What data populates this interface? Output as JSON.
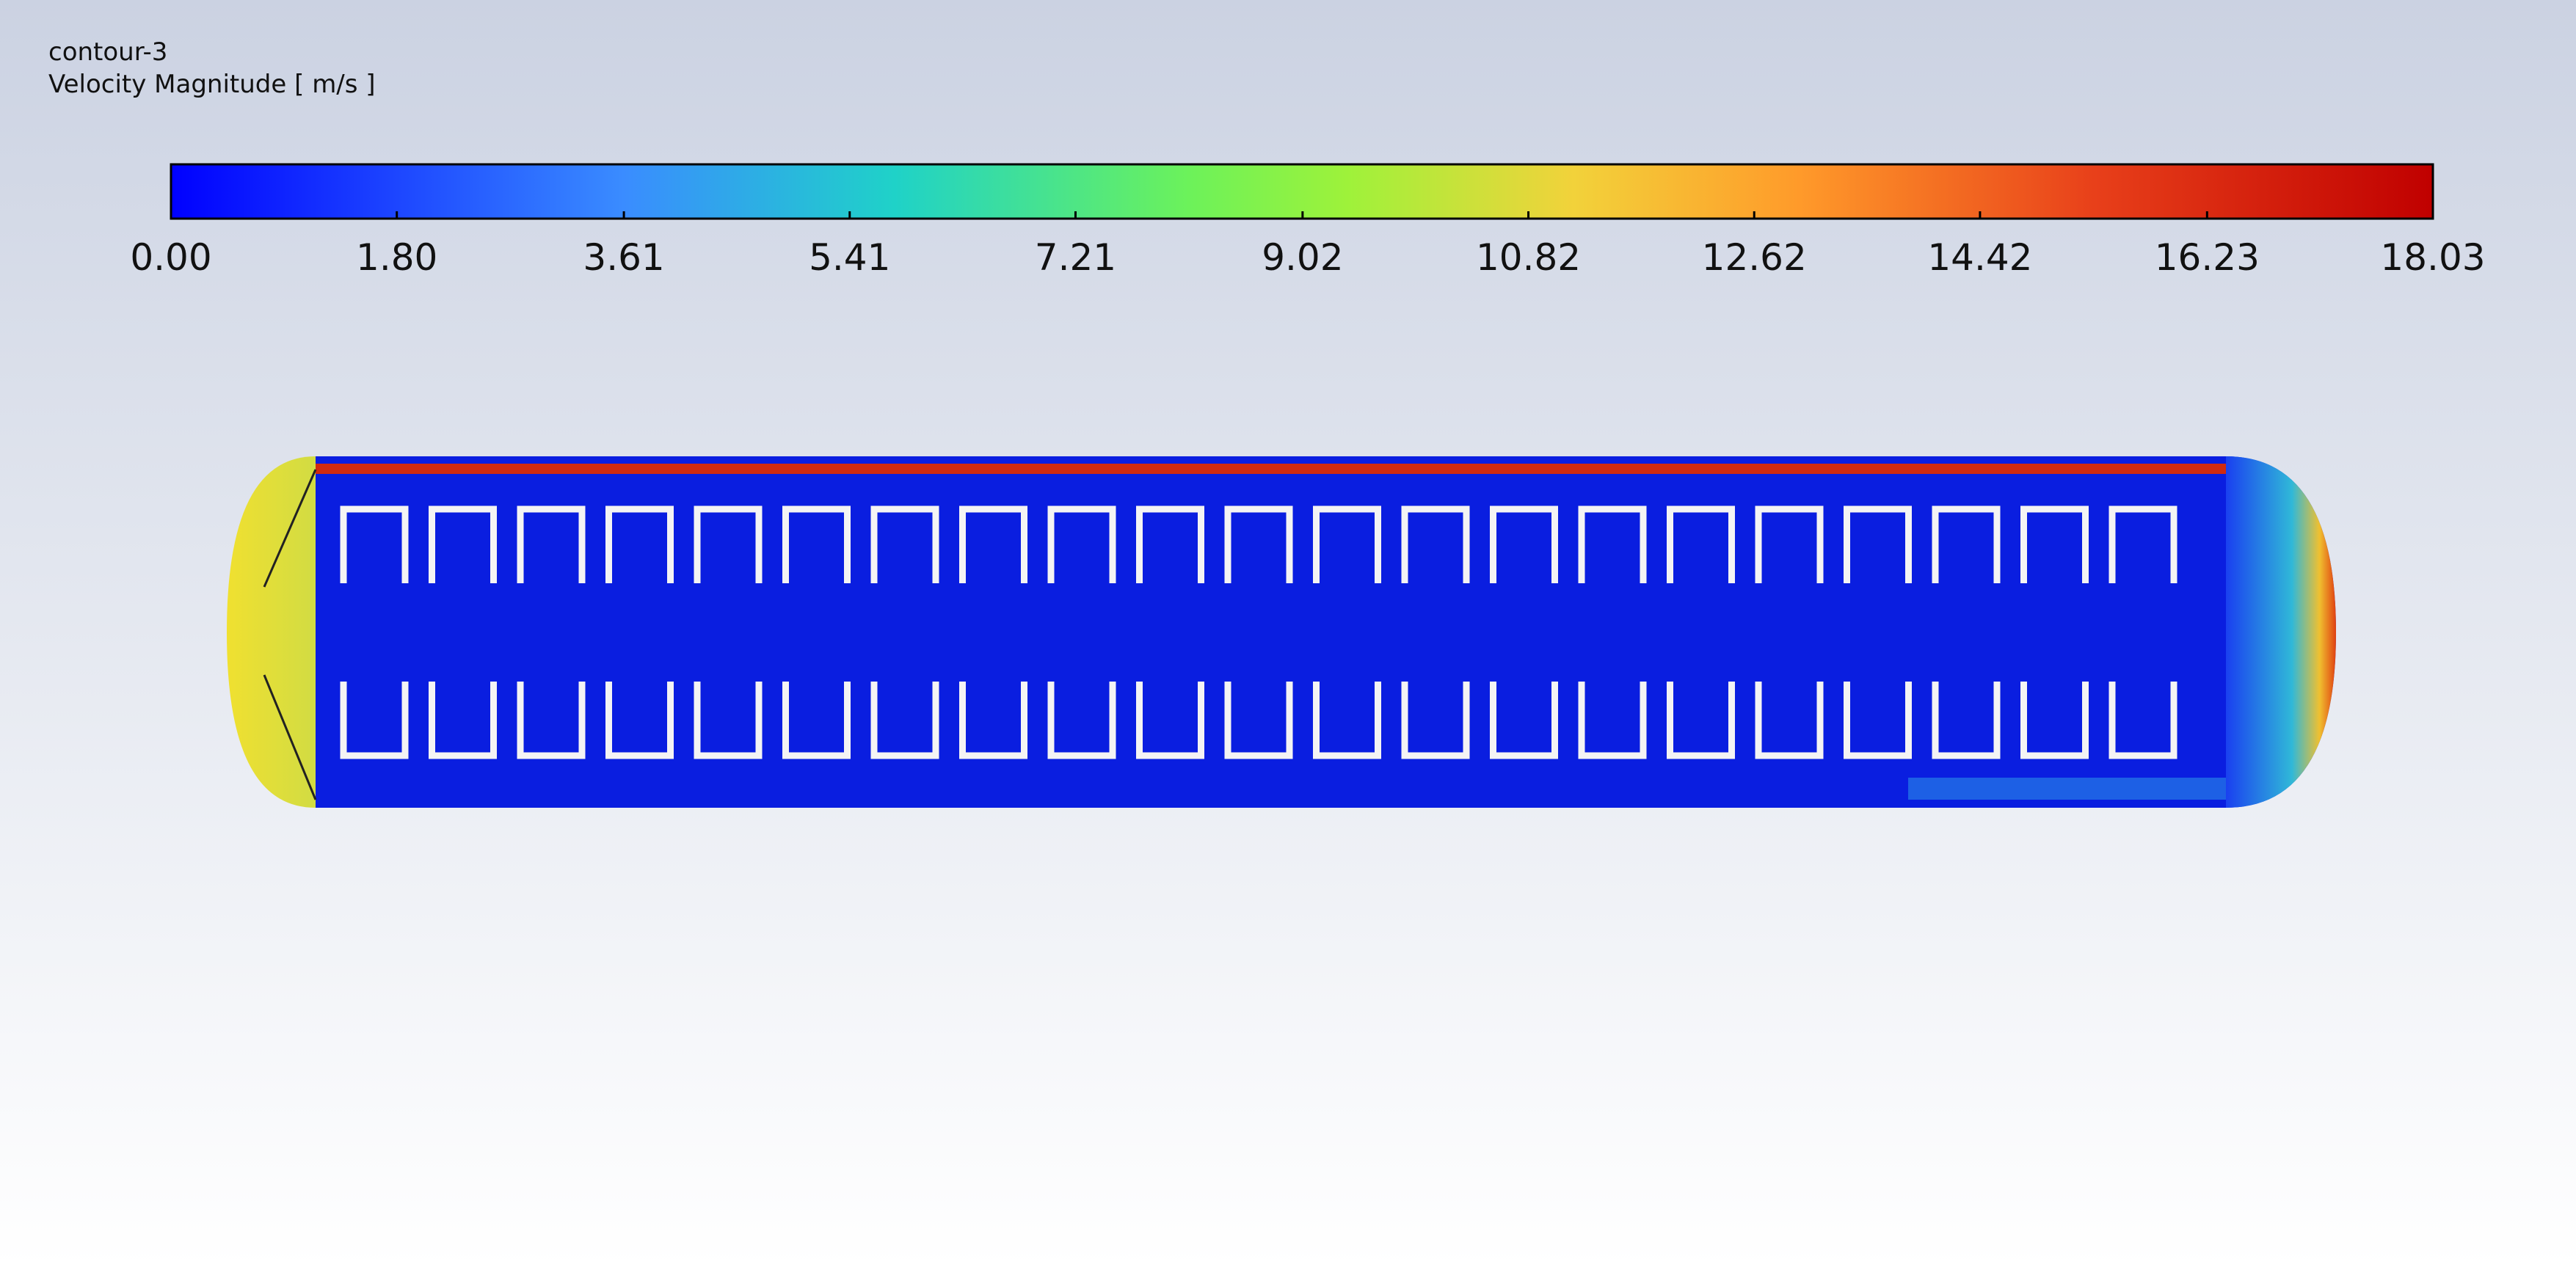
{
  "header": {
    "name": "contour-3",
    "variable": "Velocity Magnitude [ m/s ]"
  },
  "colorbar": {
    "range": [
      0,
      18.03
    ],
    "ticks": [
      {
        "value": 0,
        "label": "0.00"
      },
      {
        "value": 1.8,
        "label": "1.80"
      },
      {
        "value": 3.61,
        "label": "3.61"
      },
      {
        "value": 5.41,
        "label": "5.41"
      },
      {
        "value": 7.21,
        "label": "7.21"
      },
      {
        "value": 9.02,
        "label": "9.02"
      },
      {
        "value": 10.82,
        "label": "10.82"
      },
      {
        "value": 12.62,
        "label": "12.62"
      },
      {
        "value": 14.42,
        "label": "14.42"
      },
      {
        "value": 16.23,
        "label": "16.23"
      },
      {
        "value": 18.03,
        "label": "18.03"
      }
    ]
  }
}
